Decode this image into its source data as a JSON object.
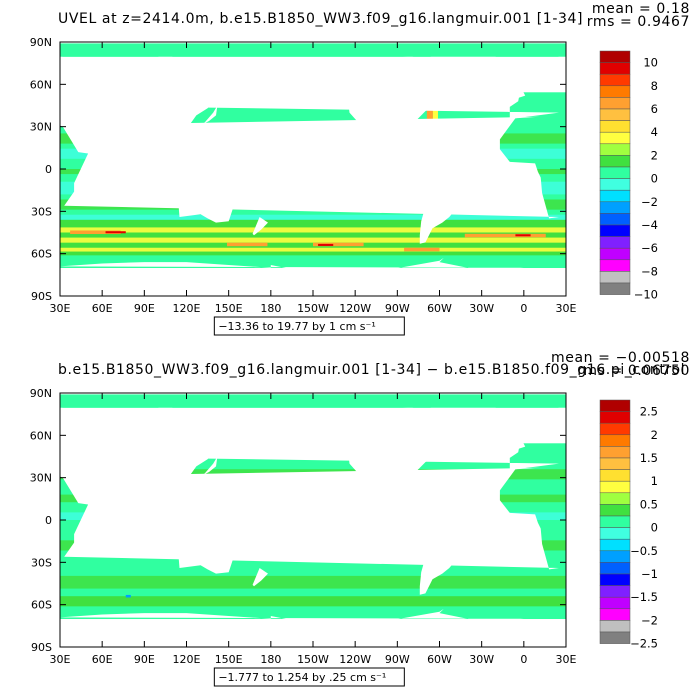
{
  "chart_data": [
    {
      "type": "heatmap",
      "title": "UVEL at z=2414.0m, b.e15.B1850_WW3.f09_g16.langmuir.001 [1-34]",
      "stats": {
        "mean": "mean = 0.18",
        "rms": "rms = 0.9467"
      },
      "range_label": "−13.36 to 19.77 by 1 cm s⁻¹",
      "x_ticks": [
        "30E",
        "60E",
        "90E",
        "120E",
        "150E",
        "180",
        "150W",
        "120W",
        "90W",
        "60W",
        "30W",
        "0",
        "30E"
      ],
      "y_ticks": [
        "90N",
        "60N",
        "30N",
        "0",
        "30S",
        "60S",
        "90S"
      ],
      "colorbar_levels": [
        "10",
        "8",
        "6",
        "4",
        "2",
        "0",
        "−2",
        "−4",
        "−6",
        "−8",
        "−10"
      ],
      "colorbar_colors": [
        "#b00000",
        "#e00000",
        "#ff3a00",
        "#ff7a00",
        "#ffa030",
        "#ffc040",
        "#ffe030",
        "#ffff40",
        "#a0ff40",
        "#40e040",
        "#30ffa0",
        "#40ffe0",
        "#00e0ff",
        "#00a0ff",
        "#0060ff",
        "#0000ff",
        "#8020ff",
        "#c000ff",
        "#ff00ff",
        "#c0c0c0",
        "#808080"
      ],
      "field_palette": {
        "dominant": "#30ffa0",
        "secondary": "#40ffe0",
        "green": "#40e040",
        "yellow": "#ffff40",
        "orange": "#ffa030",
        "red": "#e00000",
        "blue": "#00a0ff"
      }
    },
    {
      "type": "heatmap",
      "title": "b.e15.B1850_WW3.f09_g16.langmuir.001 [1-34] − b.e15.B1850.f09_g16.pi_control",
      "stats": {
        "mean": "mean = −0.00518",
        "rms": "rms = 0.06750"
      },
      "range_label": "−1.777 to 1.254 by .25 cm s⁻¹",
      "x_ticks": [
        "30E",
        "60E",
        "90E",
        "120E",
        "150E",
        "180",
        "150W",
        "120W",
        "90W",
        "60W",
        "30W",
        "0",
        "30E"
      ],
      "y_ticks": [
        "90N",
        "60N",
        "30N",
        "0",
        "30S",
        "60S",
        "90S"
      ],
      "colorbar_levels": [
        "2.5",
        "2",
        "1.5",
        "1",
        "0.5",
        "0",
        "−0.5",
        "−1",
        "−1.5",
        "−2",
        "−2.5"
      ],
      "colorbar_colors": [
        "#b00000",
        "#e00000",
        "#ff3a00",
        "#ff7a00",
        "#ffa030",
        "#ffc040",
        "#ffe030",
        "#ffff40",
        "#a0ff40",
        "#40e040",
        "#30ffa0",
        "#40ffe0",
        "#00e0ff",
        "#00a0ff",
        "#0060ff",
        "#0000ff",
        "#8020ff",
        "#c000ff",
        "#ff00ff",
        "#c0c0c0",
        "#808080"
      ],
      "field_palette": {
        "dominant": "#30ffa0",
        "secondary": "#40ffe0",
        "green": "#40e040",
        "yellow": "#ffff40",
        "orange": "#ffa030",
        "red": "#e00000",
        "blue": "#00a0ff"
      }
    }
  ]
}
